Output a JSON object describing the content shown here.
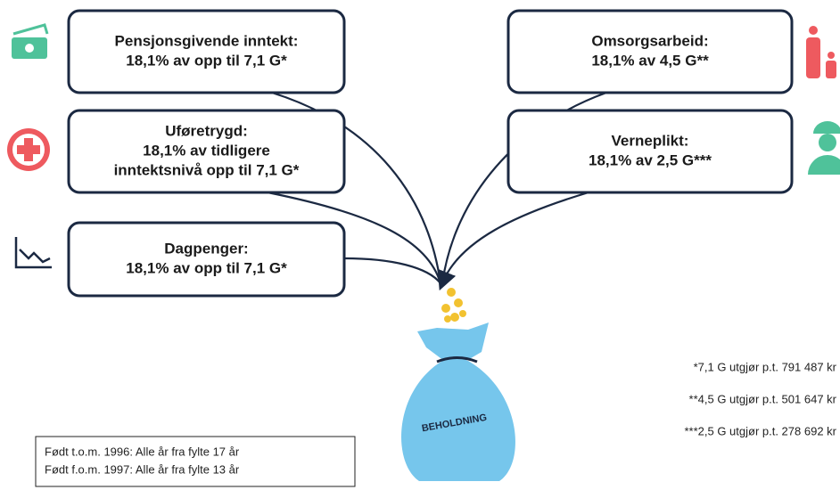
{
  "boxes": [
    {
      "lines": [
        "Pensjonsgivende inntekt:",
        "18,1% av opp til 7,1 G*"
      ]
    },
    {
      "lines": [
        "Uføretrygd:",
        "18,1% av tidligere",
        "inntektsnivå opp til 7,1 G*"
      ]
    },
    {
      "lines": [
        "Dagpenger:",
        "18,1% av opp til 7,1 G*"
      ]
    },
    {
      "lines": [
        "Omsorgsarbeid:",
        "18,1% av 4,5 G**"
      ]
    },
    {
      "lines": [
        "Verneplikt:",
        "18,1% av 2,5 G***"
      ]
    }
  ],
  "bag_label": "BEHOLDNING",
  "footnotes": [
    "*7,1 G utgjør p.t. 791 487 kr",
    "**4,5 G utgjør p.t. 501 647 kr",
    "***2,5 G utgjør p.t. 278 692 kr"
  ],
  "note": [
    "Født t.o.m. 1996: Alle år fra fylte 17 år",
    "Født f.o.m. 1997: Alle år fra fylte 13 år"
  ]
}
